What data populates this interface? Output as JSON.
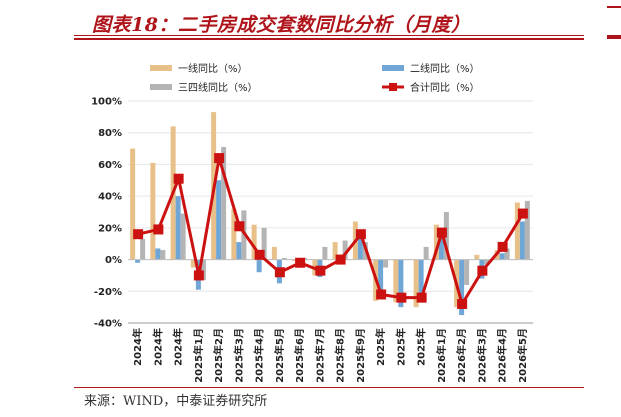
{
  "title": "图表18：二手房成交套数同比分析（月度）",
  "source": "来源：WIND，中泰证券研究所",
  "colors": {
    "tier1": "#e8c18a",
    "tier2": "#6fa6d6",
    "tier34": "#b4b4b4",
    "total": "#cc1111",
    "accent": "#b0141b"
  },
  "chart_data": {
    "type": "bar",
    "categories": [
      "2024年",
      "2024年",
      "2024年",
      "2025年1月",
      "2025年2月",
      "2025年3月",
      "2025年4月",
      "2025年5月",
      "2025年6月",
      "2025年7月",
      "2025年8月",
      "2025年9月",
      "2025年",
      "2025年",
      "2025年",
      "2026年1月",
      "2026年2月",
      "2026年3月",
      "2026年4月",
      "2026年5月"
    ],
    "yticks": [
      "100%",
      "80%",
      "60%",
      "40%",
      "20%",
      "0%",
      "-20%",
      "-40%"
    ],
    "ylim": [
      -40,
      100
    ],
    "legend": [
      "一线同比（%）",
      "二线同比（%）",
      "三四线同比（%）",
      "合计同比（%）"
    ],
    "series": [
      {
        "name": "一线同比（%）",
        "kind": "bar",
        "values": [
          70,
          61,
          84,
          -5,
          93,
          32,
          22,
          8,
          -1,
          -10,
          11,
          24,
          -26,
          -27,
          -30,
          22,
          -30,
          3,
          6,
          36
        ]
      },
      {
        "name": "二线同比（%）",
        "kind": "bar",
        "values": [
          -2,
          7,
          40,
          -19,
          50,
          11,
          -8,
          -15,
          -5,
          -11,
          -3,
          13,
          -24,
          -30,
          -25,
          14,
          -35,
          -12,
          4,
          24
        ]
      },
      {
        "name": "三四线同比（%）",
        "kind": "bar",
        "values": [
          13,
          6,
          29,
          -13,
          71,
          31,
          20,
          1,
          1,
          8,
          12,
          11,
          -5,
          0,
          8,
          30,
          -16,
          -3,
          7,
          37
        ]
      },
      {
        "name": "合计同比（%）",
        "kind": "line",
        "values": [
          16,
          19,
          51,
          -10,
          64,
          21,
          3,
          -8,
          -2,
          -7,
          0,
          16,
          -22,
          -24,
          -24,
          17,
          -28,
          -7,
          8,
          29
        ]
      }
    ]
  }
}
